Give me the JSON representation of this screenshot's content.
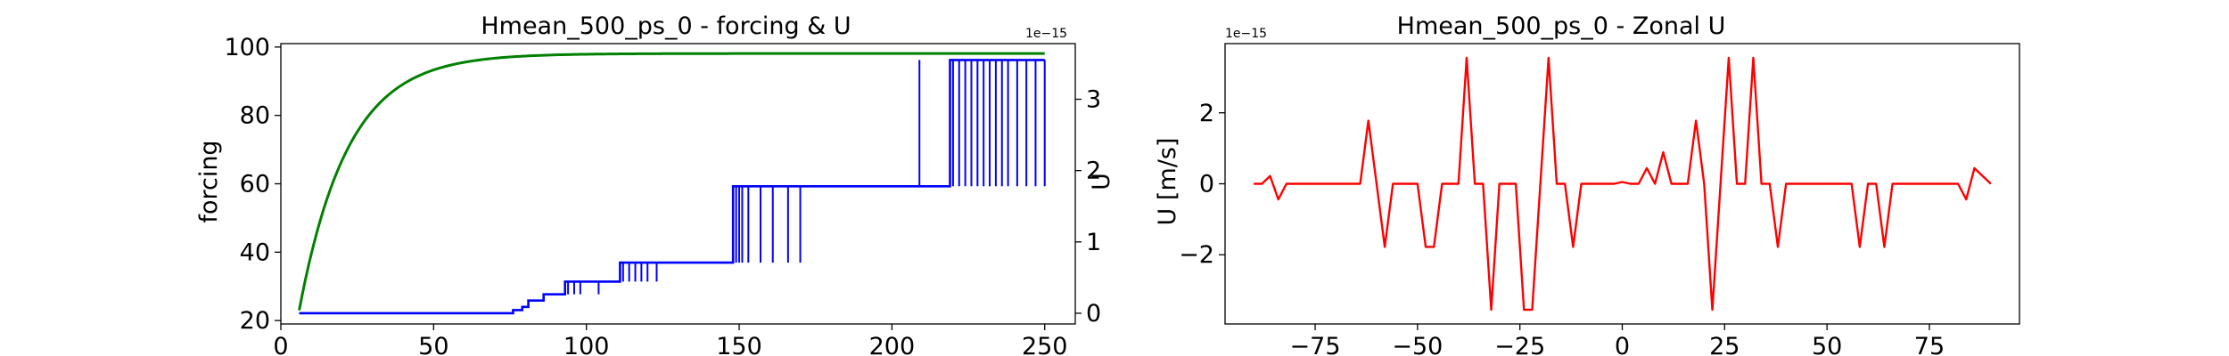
{
  "chart_data": [
    {
      "type": "line",
      "title": "Hmean_500_ps_0 - forcing & U",
      "xlabel": "",
      "ylabel": "forcing",
      "y2label": "U",
      "y2_offset_text": "1e−15",
      "xlim": [
        0,
        260
      ],
      "ylim": [
        19,
        101
      ],
      "y2lim": [
        -0.15,
        3.78
      ],
      "xticks": [
        0,
        50,
        100,
        150,
        200,
        250
      ],
      "yticks": [
        20,
        40,
        60,
        80,
        100
      ],
      "y2ticks": [
        0,
        1,
        2,
        3
      ],
      "series": [
        {
          "axis": "left",
          "color": "#008000",
          "kind": "exponential",
          "x": [
            6,
            10,
            20,
            30,
            40,
            50,
            60,
            70,
            80,
            100,
            150,
            250
          ],
          "values": [
            23.0,
            36.1,
            60.5,
            75.4,
            84.6,
            90.2,
            93.6,
            95.7,
            96.9,
            97.9,
            98.1,
            98.1
          ]
        },
        {
          "axis": "right",
          "color": "#0000ff",
          "kind": "step_with_spikes",
          "steps": [
            [
              6,
              0.0
            ],
            [
              76,
              0.044
            ],
            [
              79,
              0.089
            ],
            [
              81,
              0.178
            ],
            [
              86,
              0.266
            ],
            [
              93,
              0.444
            ],
            [
              111,
              0.71
            ],
            [
              148,
              1.78
            ],
            [
              208,
              1.78
            ],
            [
              219,
              3.55
            ],
            [
              250,
              3.55
            ]
          ],
          "spikes": [
            [
              94,
              0.266
            ],
            [
              96,
              0.266
            ],
            [
              98,
              0.266
            ],
            [
              104,
              0.266
            ],
            [
              112,
              0.444
            ],
            [
              114,
              0.444
            ],
            [
              116,
              0.444
            ],
            [
              118,
              0.444
            ],
            [
              120,
              0.444
            ],
            [
              123,
              0.444
            ],
            [
              149,
              0.71
            ],
            [
              150,
              0.71
            ],
            [
              151,
              0.71
            ],
            [
              153,
              0.71
            ],
            [
              157,
              0.71
            ],
            [
              161,
              0.71
            ],
            [
              166,
              0.71
            ],
            [
              170,
              0.71
            ],
            [
              209,
              3.55
            ],
            [
              220,
              1.78
            ],
            [
              222,
              1.78
            ],
            [
              224,
              1.78
            ],
            [
              226,
              1.78
            ],
            [
              228,
              1.78
            ],
            [
              230,
              1.78
            ],
            [
              232,
              1.78
            ],
            [
              234,
              1.78
            ],
            [
              236,
              1.78
            ],
            [
              238,
              1.78
            ],
            [
              241,
              1.78
            ],
            [
              244,
              1.78
            ],
            [
              247,
              1.78
            ],
            [
              250,
              1.78
            ]
          ]
        }
      ]
    },
    {
      "type": "line",
      "title": "Hmean_500_ps_0 - Zonal U",
      "xlabel": "",
      "ylabel": "U [m/s]",
      "y_offset_text": "1e−15",
      "xlim": [
        -97,
        97
      ],
      "ylim": [
        -3.95,
        3.95
      ],
      "xticks": [
        -75,
        -50,
        -25,
        0,
        25,
        50,
        75
      ],
      "yticks": [
        -2,
        0,
        2
      ],
      "series": [
        {
          "color": "#ff0000",
          "x": [
            -90,
            -88,
            -86,
            -84,
            -82,
            -80,
            -78,
            -76,
            -74,
            -72,
            -70,
            -68,
            -66,
            -64,
            -62,
            -60,
            -58,
            -56,
            -54,
            -52,
            -50,
            -48,
            -46,
            -44,
            -42,
            -40,
            -38,
            -36,
            -34,
            -32,
            -30,
            -28,
            -26,
            -24,
            -22,
            -20,
            -18,
            -16,
            -14,
            -12,
            -10,
            -8,
            -6,
            -4,
            -2,
            0,
            2,
            4,
            6,
            8,
            10,
            12,
            14,
            16,
            18,
            20,
            22,
            24,
            26,
            28,
            30,
            32,
            34,
            36,
            38,
            40,
            42,
            44,
            46,
            48,
            50,
            52,
            54,
            56,
            58,
            60,
            62,
            64,
            66,
            68,
            70,
            72,
            74,
            76,
            78,
            80,
            82,
            84,
            86,
            88,
            90
          ],
          "values": [
            0,
            0,
            0.22,
            -0.44,
            0,
            0,
            0,
            0,
            0,
            0,
            0,
            0,
            0,
            0,
            1.78,
            0,
            -1.78,
            0,
            0,
            0,
            0,
            -1.78,
            -1.78,
            0,
            0,
            0,
            3.55,
            0,
            0,
            -3.55,
            0,
            0,
            0,
            -3.55,
            -3.55,
            0,
            3.55,
            0,
            0,
            -1.78,
            0,
            0,
            0,
            0,
            0,
            0.05,
            0,
            0,
            0.44,
            0,
            0.89,
            0,
            0,
            0,
            1.78,
            0,
            -3.55,
            0,
            3.55,
            0,
            0,
            3.55,
            0,
            0,
            -1.78,
            0,
            0,
            0,
            0,
            0,
            0,
            0,
            0,
            0,
            -1.78,
            0,
            0,
            -1.78,
            0,
            0,
            0,
            0,
            0,
            0,
            0,
            0,
            0,
            -0.44,
            0.44,
            0.22,
            0
          ]
        }
      ]
    }
  ]
}
